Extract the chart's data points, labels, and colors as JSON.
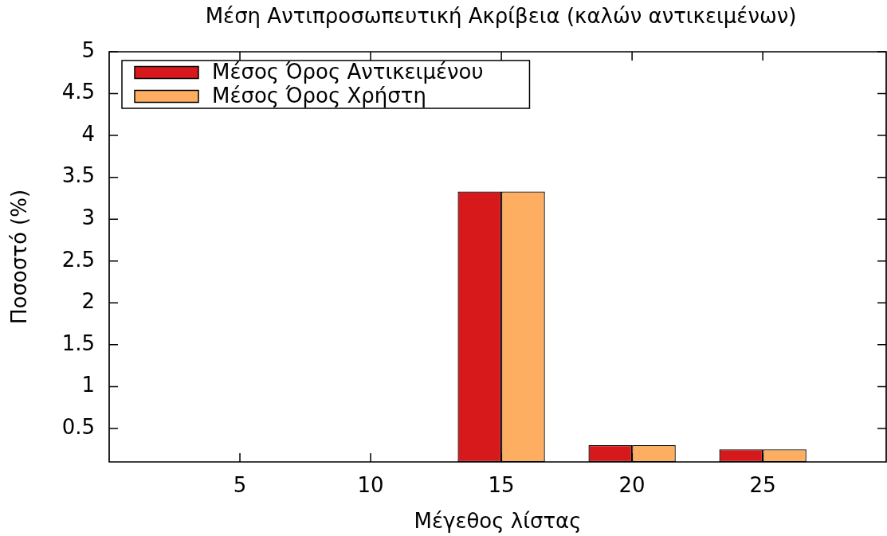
{
  "chart_data": {
    "type": "bar",
    "title": "Μέση Αντιπροσωπευτική Ακρίβεια (καλών αντικειμένων)",
    "xlabel": "Μέγεθος λίστας",
    "ylabel": "Ποσοστό (%)",
    "categories": [
      "5",
      "10",
      "15",
      "20",
      "25"
    ],
    "series": [
      {
        "name": "Μέσος Όρος Αντικειμένου",
        "color": "#d7191c",
        "values": [
          null,
          null,
          3.33,
          0.3,
          0.25
        ]
      },
      {
        "name": "Μέσος Όρος Χρήστη",
        "color": "#fdae61",
        "values": [
          null,
          null,
          3.33,
          0.3,
          0.25
        ]
      }
    ],
    "ylim": [
      0.1,
      5
    ],
    "yticks": [
      0.5,
      1,
      1.5,
      2,
      2.5,
      3,
      3.5,
      4,
      4.5,
      5
    ],
    "legend": "top left"
  }
}
